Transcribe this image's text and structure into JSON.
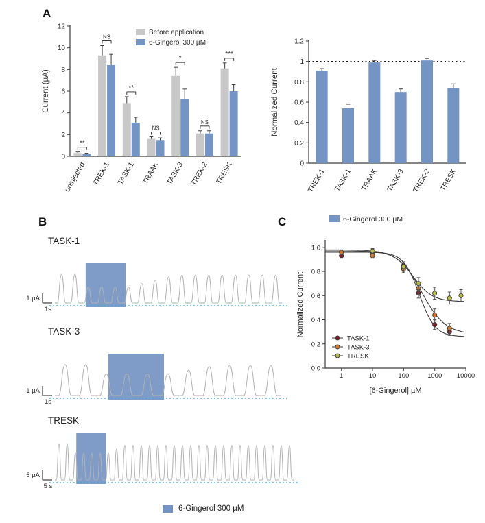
{
  "panels": {
    "a": "A",
    "b": "B",
    "c": "C"
  },
  "colors": {
    "before_bar": "#c8c8c8",
    "gingerol_bar": "#7494c4",
    "trace_line": "#b2b2b2",
    "baseline_dots": "#2da9e1",
    "application_shade": "#7494c4",
    "axis": "#3c3c3c",
    "fit_curve": "#3a3a3a"
  },
  "chart_data": [
    {
      "id": "current-bar-chart",
      "type": "bar",
      "title": "",
      "ylabel": "Current (µA)",
      "ylim": [
        0,
        12
      ],
      "yticks": [
        0,
        2,
        4,
        6,
        8,
        10,
        12
      ],
      "ytick_labels": [
        "0",
        "2",
        "4",
        "6",
        "8",
        "10",
        "12"
      ],
      "categories": [
        "uninjected",
        "TREK-1",
        "TASK-1",
        "TRAAK",
        "TASK-3",
        "TREK-2",
        "TRESK"
      ],
      "series": [
        {
          "name": "Before application",
          "color": "#c8c8c8",
          "values": [
            0.3,
            9.3,
            4.9,
            1.6,
            7.4,
            2.1,
            8.1
          ],
          "errors": [
            0.1,
            0.9,
            0.6,
            0.2,
            0.8,
            0.25,
            0.5
          ]
        },
        {
          "name": "6-Gingerol 300 µM",
          "color": "#7494c4",
          "values": [
            0.2,
            8.4,
            3.1,
            1.5,
            5.3,
            2.1,
            6.0
          ],
          "errors": [
            0.08,
            1.0,
            0.5,
            0.2,
            0.9,
            0.25,
            0.6
          ]
        }
      ],
      "significance": [
        "**",
        "NS",
        "**",
        "NS",
        "*",
        "NS",
        "***"
      ],
      "legend_position": "top-right",
      "grid": false
    },
    {
      "id": "normalized-bar-chart",
      "type": "bar",
      "title": "",
      "ylabel": "Normalized Current",
      "ylim": [
        0,
        1.2
      ],
      "yticks": [
        0,
        0.2,
        0.4,
        0.6,
        0.8,
        1.0,
        1.2
      ],
      "ytick_labels": [
        "0",
        "0.2",
        "0.4",
        "0.6",
        "0.8",
        "1",
        "1.2"
      ],
      "reference_line": 1.0,
      "categories": [
        "TREK-1",
        "TASK-1",
        "TRAAK",
        "TASK-3",
        "TREK-2",
        "TRESK"
      ],
      "series": [
        {
          "name": "6-Gingerol 300 µM",
          "color": "#7494c4",
          "values": [
            0.91,
            0.54,
            0.99,
            0.7,
            1.01,
            0.74
          ],
          "errors": [
            0.02,
            0.04,
            0.02,
            0.03,
            0.02,
            0.04
          ]
        }
      ],
      "legend_position": "bottom",
      "grid": false
    },
    {
      "id": "dose-response-chart",
      "type": "scatter",
      "title": "",
      "xlabel": "[6-Gingerol] µM",
      "ylabel": "Normalized Current",
      "xscale": "log",
      "xlim": [
        0.3,
        10000
      ],
      "ylim": [
        0,
        1.05
      ],
      "yticks": [
        0,
        0.2,
        0.4,
        0.6,
        0.8,
        1.0
      ],
      "ytick_labels": [
        "0.0",
        "0.2",
        "0.4",
        "0.6",
        "0.8",
        "1.0"
      ],
      "xticks": [
        1,
        10,
        100,
        1000,
        10000
      ],
      "xtick_labels": [
        "1",
        "10",
        "100",
        "1000",
        "10000"
      ],
      "legend_position": "bottom-left",
      "series": [
        {
          "name": "TASK-1",
          "color": "#7a2026",
          "points": [
            [
              1,
              0.93,
              0.02
            ],
            [
              10,
              0.95,
              0.02
            ],
            [
              100,
              0.85,
              0.03
            ],
            [
              300,
              0.62,
              0.04
            ],
            [
              1000,
              0.36,
              0.04
            ],
            [
              3000,
              0.3,
              0.03
            ]
          ],
          "fit": {
            "top": 0.96,
            "bottom": 0.26,
            "ic50": 320,
            "hill": 1.7
          }
        },
        {
          "name": "TASK-3",
          "color": "#cf7a2e",
          "points": [
            [
              1,
              0.96,
              0.02
            ],
            [
              10,
              0.93,
              0.02
            ],
            [
              100,
              0.82,
              0.03
            ],
            [
              300,
              0.66,
              0.05
            ],
            [
              1000,
              0.44,
              0.05
            ],
            [
              3000,
              0.33,
              0.04
            ]
          ],
          "fit": {
            "top": 0.98,
            "bottom": 0.28,
            "ic50": 380,
            "hill": 1.15
          }
        },
        {
          "name": "TRESK",
          "color": "#b7bc4a",
          "points": [
            [
              10,
              0.97,
              0.02
            ],
            [
              100,
              0.84,
              0.04
            ],
            [
              300,
              0.7,
              0.05
            ],
            [
              1000,
              0.62,
              0.05
            ],
            [
              3000,
              0.58,
              0.05
            ],
            [
              7000,
              0.6,
              0.05
            ]
          ],
          "fit": {
            "top": 0.97,
            "bottom": 0.55,
            "ic50": 200,
            "hill": 1.4
          }
        }
      ]
    }
  ],
  "traces": [
    {
      "label": "TASK-1",
      "amp_scale": "1 µA",
      "time_scale": "1s",
      "pulses": 17,
      "period": 19.5,
      "amplitude": 42,
      "shade_start": 2.3,
      "shade_end": 5.3,
      "remaining": 0.55
    },
    {
      "label": "TASK-3",
      "amp_scale": "1 µA",
      "time_scale": "1s",
      "pulses": 11,
      "period": 30,
      "amplitude": 45,
      "shade_start": 2.6,
      "shade_end": 5.3,
      "remaining": 0.7
    },
    {
      "label": "TRESK",
      "amp_scale": "5 µA",
      "time_scale": "5 s",
      "pulses": 29,
      "period": 12,
      "amplitude": 52,
      "shade_start": 2.6,
      "shade_end": 6.2,
      "remaining": 0.75
    }
  ],
  "application_legend": {
    "label": "6-Gingerol 300 µM"
  }
}
